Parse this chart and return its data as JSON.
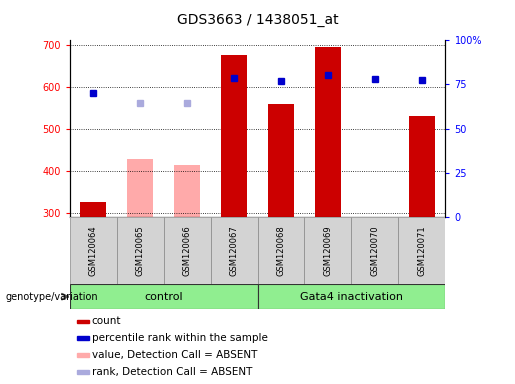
{
  "title": "GDS3663 / 1438051_at",
  "samples": [
    "GSM120064",
    "GSM120065",
    "GSM120066",
    "GSM120067",
    "GSM120068",
    "GSM120069",
    "GSM120070",
    "GSM120071"
  ],
  "count_values": [
    325,
    null,
    null,
    675,
    558,
    695,
    null,
    530
  ],
  "count_absent_values": [
    null,
    428,
    413,
    null,
    null,
    null,
    null,
    null
  ],
  "percentile_rank_values": [
    585,
    null,
    null,
    620,
    614,
    628,
    618,
    615
  ],
  "percentile_rank_absent_values": [
    null,
    562,
    562,
    null,
    null,
    null,
    null,
    null
  ],
  "ylim_left": [
    290,
    710
  ],
  "ylim_right": [
    0,
    100
  ],
  "yticks_left": [
    300,
    400,
    500,
    600,
    700
  ],
  "yticks_right": [
    0,
    25,
    50,
    75,
    100
  ],
  "bar_color_red": "#cc0000",
  "bar_color_pink": "#ffaaaa",
  "dot_color_blue": "#0000cc",
  "dot_color_lightblue": "#aaaadd",
  "group_label": "genotype/variation",
  "ctrl_label": "control",
  "gata_label": "Gata4 inactivation",
  "legend_items": [
    {
      "color": "#cc0000",
      "label": "count"
    },
    {
      "color": "#0000cc",
      "label": "percentile rank within the sample"
    },
    {
      "color": "#ffaaaa",
      "label": "value, Detection Call = ABSENT"
    },
    {
      "color": "#aaaadd",
      "label": "rank, Detection Call = ABSENT"
    }
  ],
  "bar_bottom": 290,
  "tick_fontsize": 7,
  "title_fontsize": 10,
  "label_fontsize": 7.5,
  "sample_fontsize": 6,
  "group_fontsize": 8
}
